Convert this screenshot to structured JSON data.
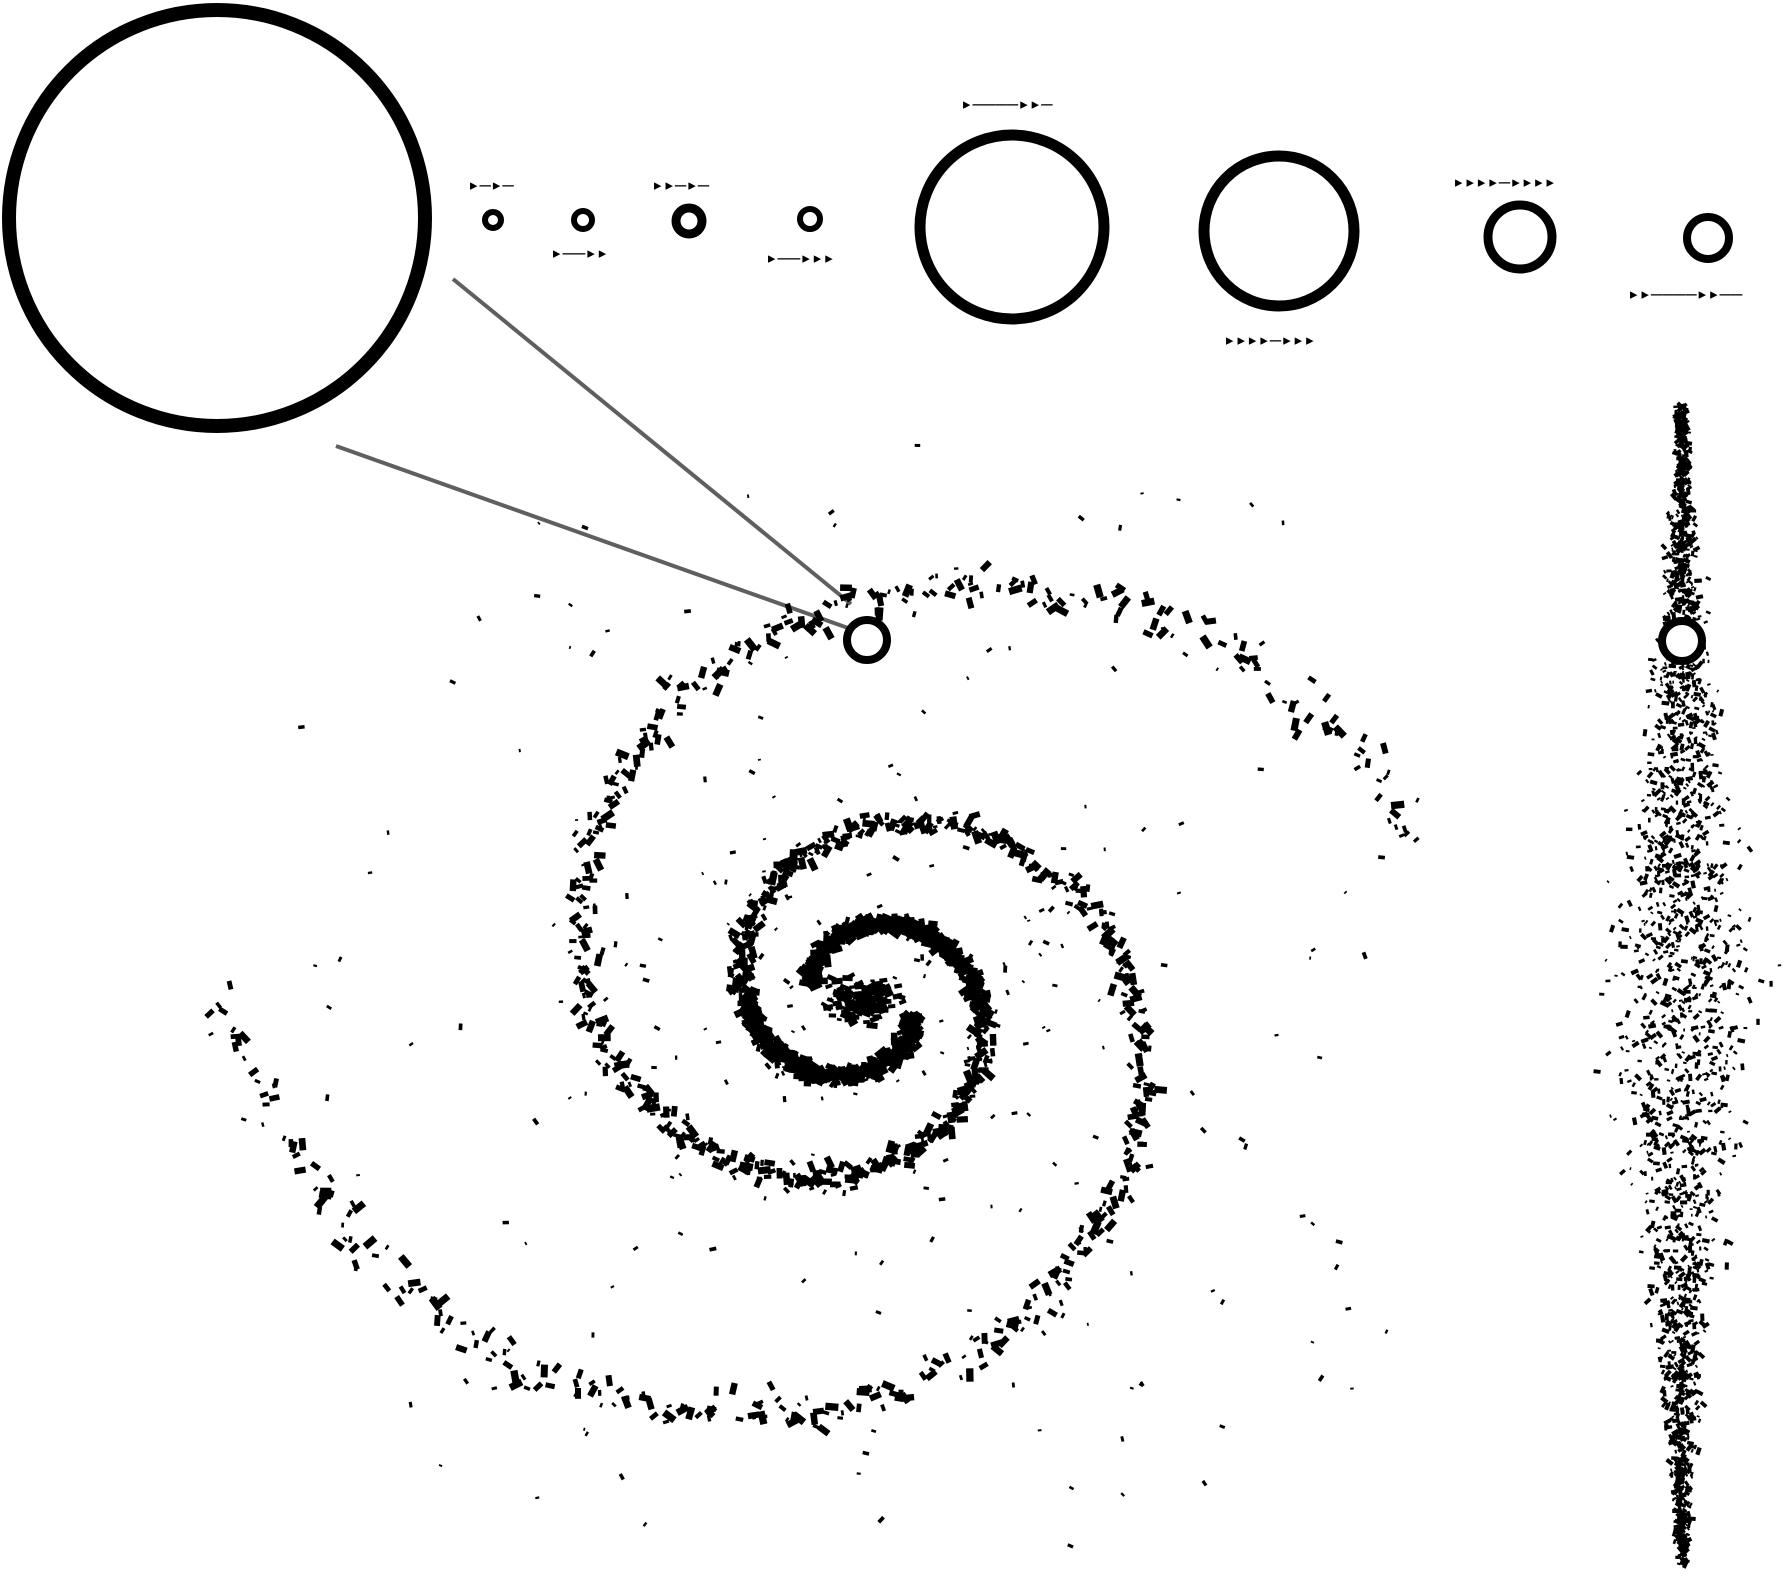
{
  "diagram": {
    "colors": {
      "ink": "#000000",
      "connector": "#5f5f5f",
      "background": "#ffffff"
    },
    "sun": {
      "icon": "sun-circle-icon"
    },
    "planets": [
      {
        "name": "planet-1",
        "code": "▸–▸–"
      },
      {
        "name": "planet-2",
        "code": "▸––▸▸"
      },
      {
        "name": "planet-3",
        "code": "▸▸–▸–"
      },
      {
        "name": "planet-4",
        "code": "▸––▸▸▸"
      },
      {
        "name": "planet-5",
        "code": "▸––––▸▸–"
      },
      {
        "name": "planet-6",
        "code": "▸▸▸▸–▸▸▸"
      },
      {
        "name": "planet-7",
        "code": "▸▸▸▸–▸▸▸▸"
      },
      {
        "name": "planet-8",
        "code": "▸▸––––▸▸––"
      }
    ],
    "galaxy_face_on": {
      "icon": "spiral-galaxy-icon",
      "marker": "sun-location-marker-icon"
    },
    "galaxy_edge_on": {
      "icon": "edge-on-galaxy-icon",
      "marker": "sun-location-marker-icon"
    }
  }
}
